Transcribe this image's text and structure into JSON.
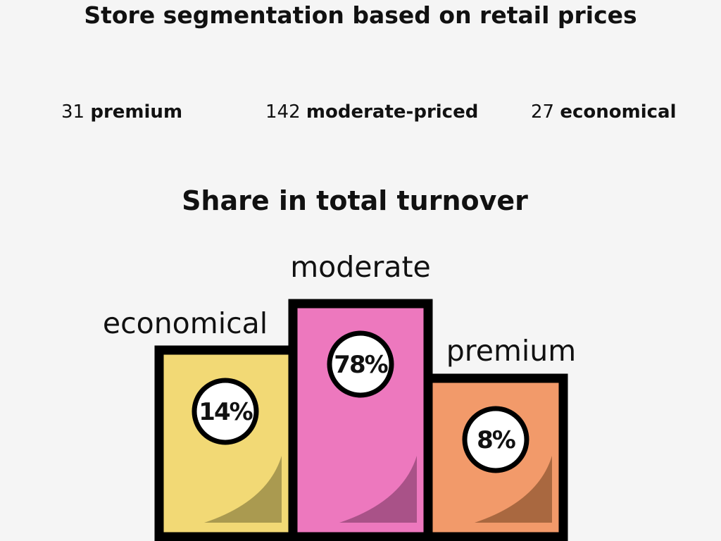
{
  "title": "Store segmentation based on retail prices",
  "segments": [
    {
      "count": "31",
      "label": "premium"
    },
    {
      "count": "142",
      "label": "moderate-priced"
    },
    {
      "count": "27",
      "label": "economical"
    }
  ],
  "chart_data": {
    "type": "bar",
    "title": "Share in total turnover",
    "categories": [
      "economical",
      "moderate",
      "premium"
    ],
    "values": [
      14,
      78,
      8
    ],
    "value_labels": [
      "14%",
      "78%",
      "8%"
    ],
    "colors": [
      "#f2d975",
      "#ed78be",
      "#f29a6a"
    ],
    "fold_colors": [
      "#aa9a50",
      "#a95288",
      "#a96840"
    ],
    "grid": false,
    "legend": "none"
  }
}
